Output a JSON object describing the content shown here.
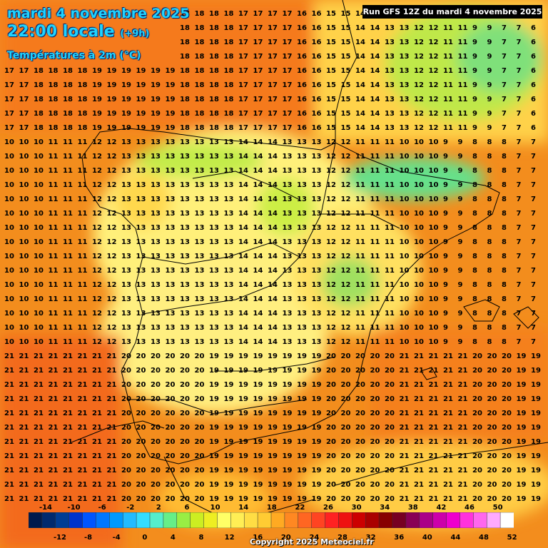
{
  "header": {
    "date": "mardi 4 novembre 2025",
    "local_time": "22:00 locale",
    "offset": "(+9h)",
    "parameter": "Températures à 2m (°C)",
    "run": "Run GFS 12Z du mardi 4 novembre 2025"
  },
  "legend": {
    "top_labels": [
      "-14",
      "-10",
      "-6",
      "-2",
      "2",
      "6",
      "10",
      "14",
      "18",
      "22",
      "26",
      "30",
      "34",
      "38",
      "42",
      "46",
      "50"
    ],
    "bottom_labels": [
      "-12",
      "-8",
      "-4",
      "0",
      "4",
      "8",
      "12",
      "16",
      "20",
      "24",
      "28",
      "32",
      "36",
      "40",
      "44",
      "48",
      "52"
    ],
    "colors": [
      "#001a4d",
      "#012a6e",
      "#013d94",
      "#0033cc",
      "#0055ff",
      "#0077ff",
      "#0099ff",
      "#22bbff",
      "#33ddff",
      "#55eecc",
      "#66ee88",
      "#99ee44",
      "#ccee22",
      "#eeee22",
      "#ffff66",
      "#ffee55",
      "#ffdd44",
      "#ffcc33",
      "#ffaa22",
      "#ff8822",
      "#ff6622",
      "#ff4422",
      "#ff2222",
      "#ee1111",
      "#cc0000",
      "#aa0000",
      "#880000",
      "#770022",
      "#880055",
      "#aa0088",
      "#cc00aa",
      "#ee00cc",
      "#ff33dd",
      "#ff66ee",
      "#ffaaff",
      "#ffffff"
    ]
  },
  "map": {
    "region": "Péninsule Ibérique",
    "sample_values": [
      {
        "row": "north-atlantic",
        "values": [
          "17",
          "18",
          "18",
          "19",
          "19",
          "19",
          "18",
          "18",
          "17",
          "17",
          "16",
          "15",
          "14",
          "13",
          "12",
          "11",
          "9",
          "7",
          "6"
        ]
      },
      {
        "row": "central-iberia",
        "values": [
          "10",
          "11",
          "12",
          "13",
          "13",
          "13",
          "14",
          "13",
          "12",
          "11",
          "10",
          "9",
          "8",
          "7"
        ]
      },
      {
        "row": "south-mediterranean",
        "values": [
          "21",
          "21",
          "21",
          "20",
          "20",
          "19",
          "19",
          "19",
          "20",
          "20",
          "21",
          "21",
          "20",
          "19"
        ]
      }
    ]
  },
  "footer": {
    "copyright": "Copyright 2025 Meteociel.fr"
  }
}
